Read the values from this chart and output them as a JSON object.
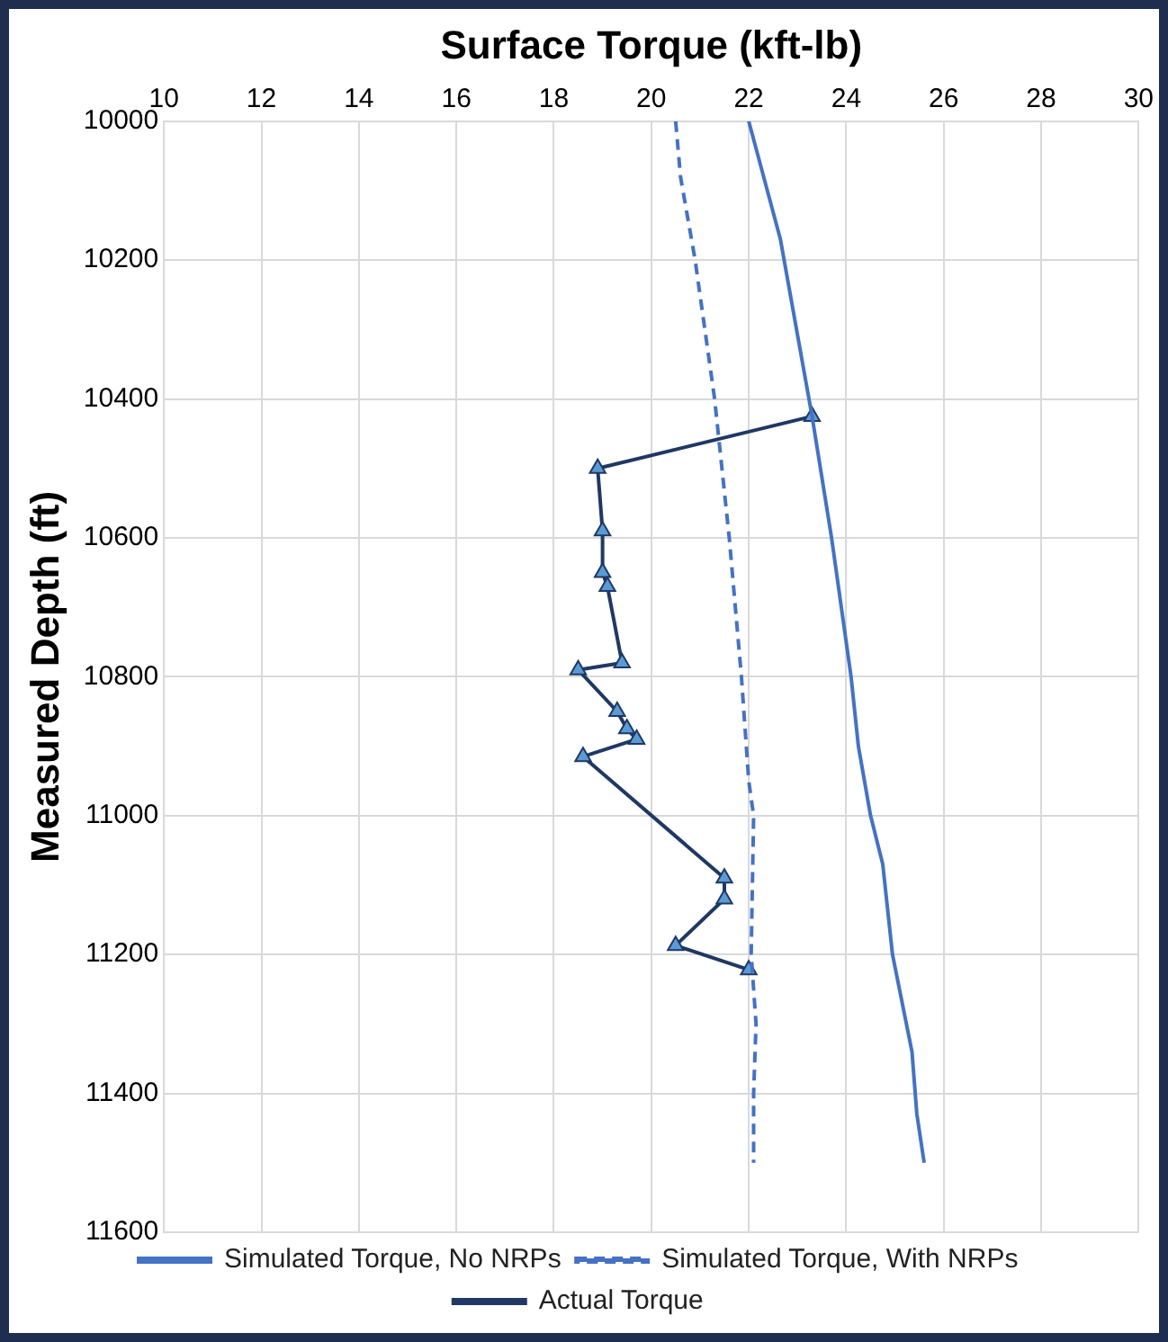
{
  "chart_data": {
    "type": "line",
    "title": "Surface Torque (kft-lb)",
    "ylabel": "Measured Depth (ft)",
    "xlim": [
      10,
      30
    ],
    "xticks": [
      10,
      12,
      14,
      16,
      18,
      20,
      22,
      24,
      26,
      28,
      30
    ],
    "ylim": [
      11600,
      10000
    ],
    "yticks": [
      10000,
      10200,
      10400,
      10600,
      10800,
      11000,
      11200,
      11400,
      11600
    ],
    "grid": true,
    "legend": "bottom",
    "series": [
      {
        "name": "Simulated Torque, No NRPs",
        "color": "#4472c4",
        "line_style": "solid",
        "marker": "none",
        "x": [
          22.0,
          22.65,
          23.3,
          23.7,
          24.1,
          24.25,
          24.5,
          24.75,
          24.95,
          25.35,
          25.45,
          25.6
        ],
        "values": [
          10000,
          10170,
          10425,
          10600,
          10800,
          10900,
          11000,
          11070,
          11200,
          11340,
          11430,
          11500
        ]
      },
      {
        "name": "Simulated Torque, With NRPs",
        "color": "#4472c4",
        "line_style": "dashed",
        "marker": "none",
        "x": [
          20.5,
          20.6,
          20.9,
          21.3,
          21.6,
          21.85,
          22.0,
          22.1,
          22.05,
          22.15,
          22.1,
          22.1
        ],
        "values": [
          10000,
          10080,
          10200,
          10400,
          10600,
          10800,
          10950,
          11000,
          11200,
          11300,
          11400,
          11500
        ]
      },
      {
        "name": "Actual Torque",
        "color": "#1f3864",
        "line_style": "solid",
        "marker": "triangle",
        "x": [
          23.3,
          18.9,
          19.0,
          19.0,
          19.1,
          19.4,
          18.5,
          19.3,
          19.5,
          19.7,
          18.6,
          21.5,
          21.5,
          20.5,
          22.0
        ],
        "values": [
          10425,
          10500,
          10590,
          10650,
          10670,
          10780,
          10790,
          10850,
          10875,
          10890,
          10915,
          11090,
          11120,
          11187,
          11222
        ]
      }
    ]
  }
}
